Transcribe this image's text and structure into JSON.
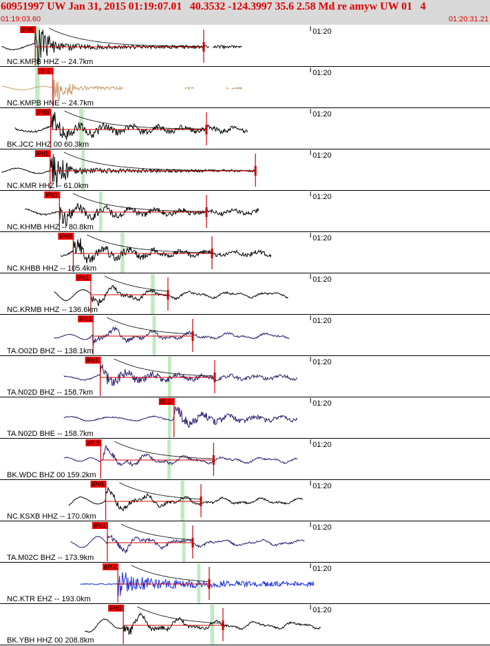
{
  "header": {
    "title": "60951997 UW Jan 31, 2015 01:19:07.01   40.3532 -124.3997 35.6 2.58 Md re amyw UW 01   4",
    "time_start": "01:19:03.60",
    "time_end": "01:20:31.21"
  },
  "colors": {
    "header_bg": "#d9d9d9",
    "header_text": "#e00000",
    "pick_box": "#ee0000",
    "coda_line": "#cc0000",
    "window_band": "#b8e6b8",
    "trace_default": "#000000"
  },
  "chart_data": {
    "type": "line",
    "title": "60951997 UW Jan 31, 2015 01:19:07.01   40.3532 -124.3997 35.6 2.58 Md re amyw UW 01   4",
    "x_unit": "time (UTC)",
    "x_range": [
      "01:19:03.60",
      "01:20:31.21"
    ],
    "x_range_seconds": [
      0,
      87.61
    ],
    "minute_tick": {
      "label": "01:20",
      "t": 56.4
    },
    "ylabel": "",
    "grid": false,
    "legend": "none",
    "channels": [
      {
        "label": "NC.KMPB HHZ -- 24.7km",
        "color": "#000000",
        "pick": "iPd0",
        "pick_t": 6.4,
        "start_t": 0.3,
        "end_t": 44.0,
        "window_t": [
          6.4,
          7.2
        ],
        "coda_end_t": 37.0,
        "gaps": [
          [
            38.0,
            38.6
          ]
        ],
        "amp": 0.9,
        "style": "spike"
      },
      {
        "label": "NC.KMPB HNE -- 24.7km",
        "color": "#c8a070",
        "pick": "iS 1",
        "pick_t": 9.6,
        "start_t": 0.3,
        "end_t": 44.0,
        "window_t": [
          6.4,
          7.2
        ],
        "coda_end_t": 0,
        "gaps": [
          [
            22.4,
            33.5
          ],
          [
            35.2,
            41.0
          ],
          [
            41.6,
            42.0
          ]
        ],
        "amp": 0.55,
        "style": "spike"
      },
      {
        "label": "BK.JCC HHZ 00 60.3km",
        "color": "#000000",
        "pick": "iPd0",
        "pick_t": 9.2,
        "start_t": 2.7,
        "end_t": 45.0,
        "window_t": [
          14.4,
          15.2
        ],
        "coda_end_t": 37.5,
        "gaps": [],
        "amp": 0.85,
        "style": "mixed"
      },
      {
        "label": "NC.KMR HHZ -- 61.0km",
        "color": "#000000",
        "pick": "iPd1",
        "pick_t": 9.1,
        "start_t": 0.3,
        "end_t": 46.4,
        "window_t": [
          14.8,
          15.4
        ],
        "coda_end_t": 46.4,
        "gaps": [],
        "amp": 0.8,
        "style": "spike"
      },
      {
        "label": "NC.KHMB HHZ -- 80.8km",
        "color": "#000000",
        "pick": "iPc1",
        "pick_t": 10.8,
        "start_t": 4.5,
        "end_t": 47.0,
        "window_t": [
          18.0,
          18.6
        ],
        "coda_end_t": 37.5,
        "gaps": [],
        "amp": 0.75,
        "style": "mixed"
      },
      {
        "label": "NC.KHBB HHZ -- 105.4km",
        "color": "#000000",
        "pick": "iPc0",
        "pick_t": 13.3,
        "start_t": 11.0,
        "end_t": 49.3,
        "window_t": [
          21.9,
          22.6
        ],
        "coda_end_t": 38.5,
        "gaps": [],
        "amp": 0.8,
        "style": "mixed"
      },
      {
        "label": "NC.KRMB HHZ -- 136.6km",
        "color": "#000000",
        "pick": "iPc1",
        "pick_t": 16.5,
        "start_t": 9.8,
        "end_t": 52.3,
        "window_t": [
          27.4,
          28.1
        ],
        "coda_end_t": 30.5,
        "gaps": [],
        "amp": 0.7,
        "style": "smooth"
      },
      {
        "label": "TA.O02D BHZ -- 138.1km",
        "color": "#2a1a6a",
        "pick": "iPd1",
        "pick_t": 16.9,
        "start_t": 9.8,
        "end_t": 52.6,
        "window_t": [
          27.7,
          28.3
        ],
        "coda_end_t": 35.0,
        "gaps": [],
        "amp": 0.7,
        "style": "smooth"
      },
      {
        "label": "TA.N02D BHZ -- 158.7km",
        "color": "#2a1a6a",
        "pick": "iPc1",
        "pick_t": 18.2,
        "start_t": 11.6,
        "end_t": 54.0,
        "window_t": [
          30.5,
          31.1
        ],
        "coda_end_t": 39.0,
        "gaps": [],
        "amp": 0.65,
        "style": "mixed"
      },
      {
        "label": "TA.N02D BHE -- 158.7km",
        "color": "#2a1a6a",
        "pick": "iS 1",
        "pick_t": 31.6,
        "start_t": 11.6,
        "end_t": 54.0,
        "window_t": [
          30.5,
          31.1
        ],
        "coda_end_t": 0,
        "gaps": [],
        "amp": 0.6,
        "style": "mixed"
      },
      {
        "label": "BK.WDC BHZ 00 159.2km",
        "color": "#2a1a6a",
        "pick": "eP 2",
        "pick_t": 18.3,
        "start_t": 11.6,
        "end_t": 54.0,
        "window_t": [
          30.4,
          31.0
        ],
        "coda_end_t": 38.8,
        "gaps": [],
        "amp": 0.7,
        "style": "smooth"
      },
      {
        "label": "NC.KSXB HHZ -- 170.0km",
        "color": "#000000",
        "pick": "iPd1",
        "pick_t": 19.2,
        "start_t": 12.5,
        "end_t": 55.0,
        "window_t": [
          32.8,
          33.5
        ],
        "coda_end_t": 36.5,
        "gaps": [],
        "amp": 0.75,
        "style": "smooth"
      },
      {
        "label": "TA.M02C BHZ -- 173.9km",
        "color": "#2a1a6a",
        "pick": "iPc1",
        "pick_t": 19.5,
        "start_t": 12.8,
        "end_t": 55.3,
        "window_t": [
          33.1,
          33.7
        ],
        "coda_end_t": 35.0,
        "gaps": [],
        "amp": 0.7,
        "style": "smooth"
      },
      {
        "label": "NC.KTR EHZ -- 193.0km",
        "color": "#1a2ee0",
        "pick": "eP 2",
        "pick_t": 21.4,
        "start_t": 14.6,
        "end_t": 57.0,
        "window_t": [
          35.8,
          36.4
        ],
        "coda_end_t": 38.0,
        "gaps": [],
        "amp": 0.55,
        "style": "noise"
      },
      {
        "label": "BK.YBH HHZ 00 208.8km",
        "color": "#000000",
        "pick": "iPd1",
        "pick_t": 22.4,
        "start_t": 15.4,
        "end_t": 58.3,
        "window_t": [
          38.2,
          38.9
        ],
        "coda_end_t": 40.5,
        "gaps": [],
        "amp": 0.85,
        "style": "smooth"
      }
    ]
  }
}
